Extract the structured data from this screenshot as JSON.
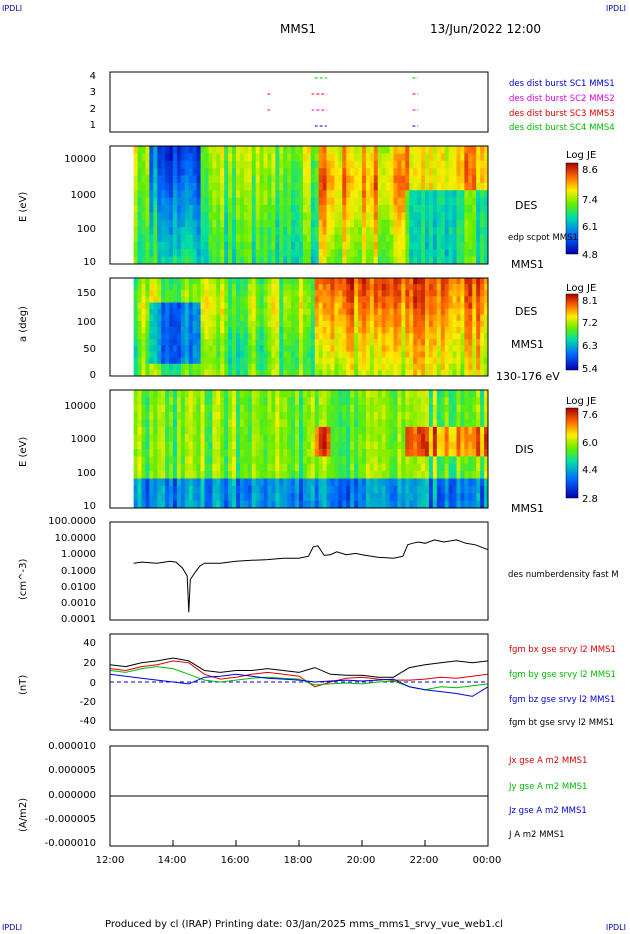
{
  "corner_labels": [
    "IPDLI",
    "IPDLI",
    "IPDLI",
    "IPDLI"
  ],
  "header": {
    "spacecraft": "MMS1",
    "datetime": "13/Jun/2022 12:00"
  },
  "footer": "Produced by cl (IRAP)   Printing date: 03/Jan/2025   mms_mms1_srvy_vue_web1.cl",
  "colors": {
    "red": "#dd0000",
    "green": "#00bb00",
    "blue": "#0000dd",
    "magenta": "#dd00dd",
    "black": "#000000"
  },
  "chart_data": [
    {
      "type": "scatter",
      "panel": "burst availability",
      "y_ticks": [
        "4",
        "3",
        "2",
        "1"
      ],
      "legend": [
        {
          "label": "des dist burst SC1 MMS1",
          "color": "#0000dd"
        },
        {
          "label": "des dist burst SC2 MMS2",
          "color": "#dd00dd"
        },
        {
          "label": "des dist burst SC3 MMS3",
          "color": "#dd0000"
        },
        {
          "label": "des dist burst SC4 MMS4",
          "color": "#00bb00"
        }
      ],
      "series": [
        {
          "name": "des dist burst SC1 MMS1",
          "y": 1,
          "intervals": [
            [
              18.5,
              18.85
            ],
            [
              21.6,
              21.75
            ]
          ]
        },
        {
          "name": "des dist burst SC2 MMS2",
          "y": 2,
          "intervals": [
            [
              17.0,
              17.05
            ],
            [
              18.4,
              18.45
            ],
            [
              18.55,
              18.85
            ],
            [
              21.6,
              21.75
            ]
          ]
        },
        {
          "name": "des dist burst SC3 MMS3",
          "y": 3,
          "intervals": [
            [
              17.0,
              17.05
            ],
            [
              18.4,
              18.45
            ],
            [
              18.55,
              18.85
            ],
            [
              21.6,
              21.75
            ]
          ]
        },
        {
          "name": "des dist burst SC4 MMS4",
          "y": 4,
          "intervals": [
            [
              18.5,
              18.85
            ],
            [
              21.6,
              21.75
            ]
          ]
        }
      ]
    },
    {
      "type": "heatmap",
      "panel": "DES energy spectrogram",
      "ylabel": "E (eV)",
      "y_ticks": [
        "10000",
        "1000",
        "100",
        "10"
      ],
      "side_labels": [
        "DES",
        "edp scpot MMS1",
        "MMS1"
      ],
      "colorbar": {
        "title": "Log JE",
        "ticks": [
          "8.6",
          "7.4",
          "6.1",
          "4.8"
        ]
      }
    },
    {
      "type": "heatmap",
      "panel": "DES pitch angle",
      "ylabel": "a (deg)",
      "y_ticks": [
        "150",
        "100",
        "50",
        "0"
      ],
      "side_labels": [
        "DES",
        "MMS1",
        "130-176 eV"
      ],
      "colorbar": {
        "title": "Log JE",
        "ticks": [
          "8.1",
          "7.2",
          "6.3",
          "5.4"
        ]
      }
    },
    {
      "type": "heatmap",
      "panel": "DIS energy spectrogram",
      "ylabel": "E (eV)",
      "y_ticks": [
        "10000",
        "1000",
        "100",
        "10"
      ],
      "side_labels": [
        "DIS",
        "MMS1"
      ],
      "colorbar": {
        "title": "Log JE",
        "ticks": [
          "7.6",
          "6.0",
          "4.4",
          "2.8"
        ]
      }
    },
    {
      "type": "line",
      "panel": "density",
      "ylabel": "(cm^-3)",
      "y_scale": "log",
      "ylim": [
        0.0001,
        100
      ],
      "y_ticks": [
        "100.0000",
        "10.0000",
        "1.0000",
        "0.1000",
        "0.0100",
        "0.0010",
        "0.0001"
      ],
      "legend": [
        "des numberdensity fast M"
      ],
      "series": [
        {
          "name": "des numberdensity fast M",
          "x": [
            12.75,
            13.0,
            13.5,
            13.9,
            14.1,
            14.3,
            14.45,
            14.5,
            14.55,
            14.7,
            14.85,
            15.0,
            15.5,
            16.0,
            16.5,
            17.0,
            17.5,
            18.0,
            18.3,
            18.45,
            18.6,
            18.8,
            19.0,
            19.2,
            19.5,
            19.8,
            20.0,
            20.5,
            21.0,
            21.3,
            21.45,
            21.6,
            21.8,
            22.0,
            22.3,
            22.6,
            23.0,
            23.3,
            23.6,
            24.0
          ],
          "y": [
            0.3,
            0.35,
            0.3,
            0.4,
            0.35,
            0.15,
            0.05,
            0.0003,
            0.03,
            0.08,
            0.2,
            0.3,
            0.3,
            0.4,
            0.45,
            0.5,
            0.6,
            0.6,
            0.8,
            3.0,
            3.5,
            0.9,
            1.0,
            1.5,
            1.0,
            1.2,
            1.0,
            0.7,
            0.6,
            0.8,
            4.0,
            5.0,
            6.0,
            5.0,
            8.0,
            6.0,
            8.0,
            5.0,
            4.0,
            2.0
          ]
        }
      ]
    },
    {
      "type": "line",
      "panel": "magnetic field",
      "ylabel": "(nT)",
      "ylim": [
        -50,
        50
      ],
      "y_ticks": [
        "40",
        "20",
        "0",
        "-20",
        "-40"
      ],
      "legend": [
        {
          "label": "fgm bx gse srvy l2 MMS1",
          "color": "#dd0000"
        },
        {
          "label": "fgm by gse srvy l2 MMS1",
          "color": "#00bb00"
        },
        {
          "label": "fgm bz gse srvy l2 MMS1",
          "color": "#0000dd"
        },
        {
          "label": "fgm bt gse srvy l2 MMS1",
          "color": "#000000"
        }
      ],
      "x": [
        12.0,
        12.5,
        13.0,
        13.5,
        14.0,
        14.5,
        15.0,
        15.5,
        16.0,
        16.5,
        17.0,
        17.5,
        18.0,
        18.5,
        19.0,
        19.5,
        20.0,
        20.5,
        21.0,
        21.5,
        22.0,
        22.5,
        23.0,
        23.5,
        24.0
      ],
      "series": [
        {
          "name": "fgm bx gse srvy l2 MMS1",
          "values": [
            14,
            12,
            16,
            18,
            22,
            20,
            8,
            3,
            5,
            8,
            10,
            8,
            6,
            -5,
            0,
            4,
            5,
            3,
            2,
            2,
            3,
            5,
            4,
            6,
            8
          ]
        },
        {
          "name": "fgm by gse srvy l2 MMS1",
          "values": [
            12,
            10,
            14,
            16,
            14,
            8,
            2,
            0,
            2,
            4,
            5,
            4,
            3,
            -3,
            -2,
            -1,
            -2,
            0,
            1,
            -5,
            -8,
            -5,
            -6,
            -4,
            -2
          ]
        },
        {
          "name": "fgm bz gse srvy l2 MMS1",
          "values": [
            8,
            6,
            4,
            2,
            0,
            -2,
            5,
            6,
            8,
            6,
            4,
            3,
            2,
            0,
            1,
            2,
            1,
            2,
            3,
            -5,
            -8,
            -10,
            -12,
            -15,
            -5
          ]
        },
        {
          "name": "fgm bt gse srvy l2 MMS1",
          "values": [
            18,
            16,
            20,
            22,
            25,
            22,
            12,
            10,
            12,
            12,
            14,
            12,
            10,
            15,
            8,
            7,
            7,
            5,
            5,
            15,
            18,
            20,
            22,
            20,
            22
          ]
        }
      ]
    },
    {
      "type": "line",
      "panel": "current density",
      "ylabel": "(A/m2)",
      "ylim": [
        -0.0001,
        0.0001
      ],
      "y_ticks": [
        "0.000010",
        "0.000005",
        "0.000000",
        "-0.000005",
        "-0.000010"
      ],
      "legend": [
        {
          "label": "Jx gse A m2 MMS1",
          "color": "#dd0000"
        },
        {
          "label": "Jy gse A m2 MMS1",
          "color": "#00bb00"
        },
        {
          "label": "Jz gse A m2 MMS1",
          "color": "#0000dd"
        },
        {
          "label": "J A m2 MMS1",
          "color": "#000000"
        }
      ],
      "series": [
        {
          "name": "J A m2 MMS1",
          "x": [
            12.0,
            24.0
          ],
          "values": [
            0,
            0
          ]
        }
      ]
    }
  ],
  "x_axis": {
    "ticks": [
      "12:00",
      "14:00",
      "16:00",
      "18:00",
      "20:00",
      "22:00",
      "00:00"
    ]
  }
}
